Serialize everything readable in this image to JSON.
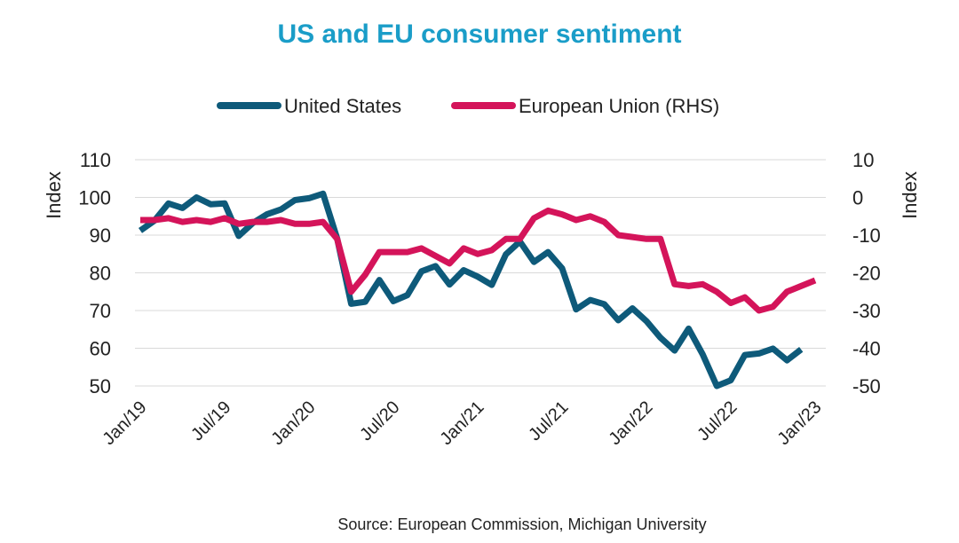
{
  "chart_data": {
    "type": "line",
    "title": "US and EU consumer sentiment",
    "source": "Source: European Commission, Michigan University",
    "ylabel": "Index",
    "y2label": "Index",
    "categories": [
      "Jan/19",
      null,
      null,
      null,
      null,
      null,
      "Jul/19",
      null,
      null,
      null,
      null,
      null,
      "Jan/20",
      null,
      null,
      null,
      null,
      null,
      "Jul/20",
      null,
      null,
      null,
      null,
      null,
      "Jan/21",
      null,
      null,
      null,
      null,
      null,
      "Jul/21",
      null,
      null,
      null,
      null,
      null,
      "Jan/22",
      null,
      null,
      null,
      null,
      null,
      "Jul/22",
      null,
      null,
      null,
      null,
      null,
      "Jan/23"
    ],
    "series": [
      {
        "name": "United States",
        "color": "#0e5a7a",
        "values": [
          91.2,
          93.8,
          98.4,
          97.2,
          100.0,
          98.2,
          98.4,
          89.8,
          93.2,
          95.5,
          96.8,
          99.3,
          99.8,
          101.0,
          89.1,
          71.8,
          72.3,
          78.1,
          72.5,
          74.1,
          80.4,
          81.8,
          76.9,
          80.7,
          79.0,
          76.8,
          84.9,
          88.3,
          82.9,
          85.5,
          81.2,
          70.3,
          72.8,
          71.7,
          67.4,
          70.6,
          67.2,
          62.8,
          59.4,
          65.2,
          58.4,
          50.0,
          51.5,
          58.2,
          58.6,
          59.9,
          56.8,
          59.7,
          null
        ]
      },
      {
        "name": "European Union (RHS)",
        "color": "#d4145a",
        "axis": "y2",
        "values": [
          -6,
          -6,
          -5.5,
          -6.5,
          -6,
          -6.5,
          -5.5,
          -7,
          -6.5,
          -6.5,
          -6,
          -7,
          -7,
          -6.5,
          -11,
          -25,
          -20.5,
          -14.5,
          -14.5,
          -14.5,
          -13.5,
          -15.5,
          -17.5,
          -13.5,
          -15,
          -14,
          -11,
          -11,
          -5.5,
          -3.5,
          -4.5,
          -6,
          -5,
          -6.5,
          -10,
          -10.5,
          -11,
          -11,
          -23,
          -23.5,
          -23,
          -25,
          -28,
          -26.5,
          -30,
          -29,
          -25,
          -23.5,
          -22
        ]
      }
    ],
    "ylim": [
      50,
      110
    ],
    "yticks": [
      50,
      60,
      70,
      80,
      90,
      100,
      110
    ],
    "y2lim": [
      -50,
      10
    ],
    "y2ticks": [
      -50,
      -40,
      -30,
      -20,
      -10,
      0,
      10
    ],
    "grid": true,
    "legend": "top"
  }
}
